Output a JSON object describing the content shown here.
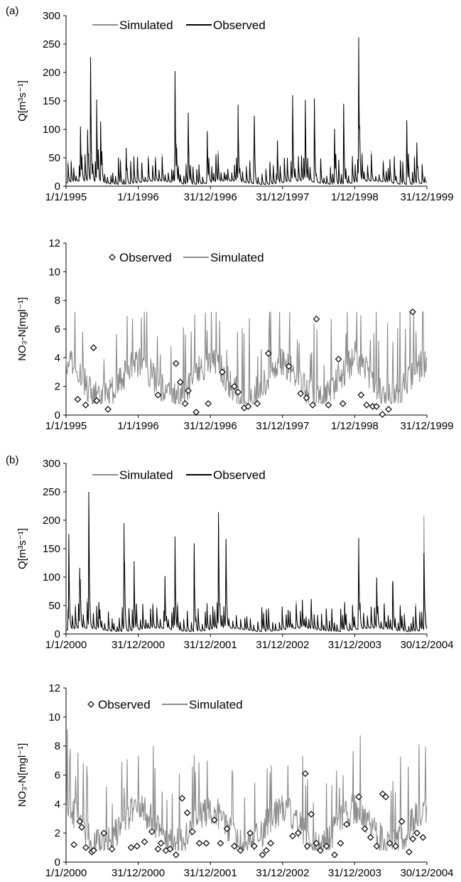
{
  "panel_labels": [
    "(a)",
    "(b)"
  ],
  "chart_data": [
    {
      "type": "line",
      "panel": "(a)",
      "ylabel": "Q[m³s⁻¹]",
      "ylim": [
        0,
        300
      ],
      "yticks": [
        "0",
        "50",
        "100",
        "150",
        "200",
        "250",
        "300"
      ],
      "xticks": [
        "1/1/1995",
        "1/1/1996",
        "31/12/1996",
        "31/12/1997",
        "1/12/1998",
        "31/12/1999"
      ],
      "legend": [
        "Simulated",
        "Observed"
      ],
      "legend_position": "top-left",
      "colors": {
        "Simulated": "#8c8c8c",
        "Observed": "#000000"
      },
      "x_range": [
        "1995-01-01",
        "1999-12-31"
      ],
      "peaks": [
        {
          "date": "1995-03-15",
          "observed": 92,
          "simulated": 75
        },
        {
          "date": "1995-04-20",
          "observed": 90,
          "simulated": 80
        },
        {
          "date": "1995-05-05",
          "observed": 217,
          "simulated": 200
        },
        {
          "date": "1995-06-05",
          "observed": 141,
          "simulated": 120
        },
        {
          "date": "1995-06-25",
          "observed": 106,
          "simulated": 100
        },
        {
          "date": "1995-11-01",
          "observed": 64,
          "simulated": 55
        },
        {
          "date": "1996-07-05",
          "observed": 195,
          "simulated": 180
        },
        {
          "date": "1996-09-10",
          "observed": 107,
          "simulated": 100
        },
        {
          "date": "1996-12-15",
          "observed": 85,
          "simulated": 80
        },
        {
          "date": "1997-05-20",
          "observed": 132,
          "simulated": 110
        },
        {
          "date": "1997-08-10",
          "observed": 95,
          "simulated": 90
        },
        {
          "date": "1997-12-05",
          "observed": 72,
          "simulated": 70
        },
        {
          "date": "1998-02-20",
          "observed": 149,
          "simulated": 130
        },
        {
          "date": "1998-04-25",
          "observed": 140,
          "simulated": 120
        },
        {
          "date": "1998-06-10",
          "observed": 118,
          "simulated": 100
        },
        {
          "date": "1998-09-20",
          "observed": 97,
          "simulated": 90
        },
        {
          "date": "1998-11-05",
          "observed": 141,
          "simulated": 130
        },
        {
          "date": "1999-01-20",
          "observed": 246,
          "simulated": 230
        },
        {
          "date": "1999-09-20",
          "observed": 98,
          "simulated": 90
        },
        {
          "date": "1999-11-10",
          "observed": 72,
          "simulated": 65
        }
      ]
    },
    {
      "type": "line",
      "panel": "(a)",
      "ylabel": "NO₃-N[mgl⁻¹]",
      "ylim": [
        0,
        12
      ],
      "yticks": [
        "0",
        "2",
        "4",
        "6",
        "8",
        "10",
        "12"
      ],
      "xticks": [
        "1/1/1995",
        "1/1/1996",
        "31/12/1996",
        "31/12/1997",
        "1/12/1998",
        "31/12/1999"
      ],
      "legend": [
        "Observed",
        "Simulated"
      ],
      "legend_position": "top-left",
      "colors": {
        "Simulated": "#8c8c8c",
        "Observed": "#000000"
      },
      "x_range": [
        "1995-01-01",
        "1999-12-31"
      ],
      "observed_points": [
        {
          "date": "1995-03-01",
          "value": 1.1
        },
        {
          "date": "1995-04-10",
          "value": 0.7
        },
        {
          "date": "1995-05-20",
          "value": 4.7
        },
        {
          "date": "1995-06-05",
          "value": 1.0
        },
        {
          "date": "1995-08-01",
          "value": 0.4
        },
        {
          "date": "1996-04-10",
          "value": 1.4
        },
        {
          "date": "1996-07-10",
          "value": 3.6
        },
        {
          "date": "1996-08-01",
          "value": 2.3
        },
        {
          "date": "1996-08-25",
          "value": 0.8
        },
        {
          "date": "1996-09-10",
          "value": 1.7
        },
        {
          "date": "1996-10-20",
          "value": 0.2
        },
        {
          "date": "1996-12-20",
          "value": 0.8
        },
        {
          "date": "1997-03-01",
          "value": 3.0
        },
        {
          "date": "1997-05-01",
          "value": 2.0
        },
        {
          "date": "1997-05-20",
          "value": 1.6
        },
        {
          "date": "1997-06-20",
          "value": 0.5
        },
        {
          "date": "1997-07-10",
          "value": 0.6
        },
        {
          "date": "1997-08-25",
          "value": 0.8
        },
        {
          "date": "1997-10-20",
          "value": 4.3
        },
        {
          "date": "1998-02-01",
          "value": 3.4
        },
        {
          "date": "1998-04-01",
          "value": 1.5
        },
        {
          "date": "1998-05-01",
          "value": 1.2
        },
        {
          "date": "1998-06-01",
          "value": 0.7
        },
        {
          "date": "1998-06-20",
          "value": 6.7
        },
        {
          "date": "1998-08-20",
          "value": 0.7
        },
        {
          "date": "1998-10-10",
          "value": 3.9
        },
        {
          "date": "1998-11-01",
          "value": 0.8
        },
        {
          "date": "1999-02-01",
          "value": 1.4
        },
        {
          "date": "1999-03-01",
          "value": 0.7
        },
        {
          "date": "1999-04-01",
          "value": 0.6
        },
        {
          "date": "1999-04-20",
          "value": 0.6
        },
        {
          "date": "1999-05-20",
          "value": 0.05
        },
        {
          "date": "1999-06-20",
          "value": 0.4
        },
        {
          "date": "1999-10-20",
          "value": 7.2
        }
      ]
    },
    {
      "type": "line",
      "panel": "(b)",
      "ylabel": "Q[m³s⁻¹]",
      "ylim": [
        0,
        300
      ],
      "yticks": [
        "0",
        "50",
        "100",
        "150",
        "200",
        "250",
        "300"
      ],
      "xticks": [
        "1/1/2000",
        "31/12/2000",
        "31/12/2001",
        "31/12/2002",
        "31/12/2003",
        "30/12/2004"
      ],
      "legend": [
        "Simulated",
        "Observed"
      ],
      "legend_position": "top-left",
      "colors": {
        "Simulated": "#8c8c8c",
        "Observed": "#000000"
      },
      "x_range": [
        "2000-01-01",
        "2004-12-30"
      ],
      "peaks": [
        {
          "date": "2000-01-15",
          "observed": 158,
          "simulated": 140
        },
        {
          "date": "2000-03-10",
          "observed": 100,
          "simulated": 90
        },
        {
          "date": "2000-04-25",
          "observed": 232,
          "simulated": 210
        },
        {
          "date": "2000-06-15",
          "observed": 47,
          "simulated": 45
        },
        {
          "date": "2000-10-20",
          "observed": 188,
          "simulated": 160
        },
        {
          "date": "2000-12-10",
          "observed": 120,
          "simulated": 110
        },
        {
          "date": "2001-05-15",
          "observed": 86,
          "simulated": 80
        },
        {
          "date": "2001-07-05",
          "observed": 160,
          "simulated": 140
        },
        {
          "date": "2001-10-10",
          "observed": 130,
          "simulated": 120
        },
        {
          "date": "2002-02-10",
          "observed": 200,
          "simulated": 180
        },
        {
          "date": "2002-03-20",
          "observed": 130,
          "simulated": 115
        },
        {
          "date": "2003-04-10",
          "observed": 49,
          "simulated": 45
        },
        {
          "date": "2003-05-25",
          "observed": 40,
          "simulated": 35
        },
        {
          "date": "2003-11-10",
          "observed": 50,
          "simulated": 45
        },
        {
          "date": "2004-01-20",
          "observed": 138,
          "simulated": 110
        },
        {
          "date": "2004-04-20",
          "observed": 88,
          "simulated": 80
        },
        {
          "date": "2004-07-10",
          "observed": 70,
          "simulated": 65
        },
        {
          "date": "2004-12-15",
          "observed": 135,
          "simulated": 200
        }
      ]
    },
    {
      "type": "line",
      "panel": "(b)",
      "ylabel": "NO₃-N[mgl⁻¹]",
      "ylim": [
        0,
        12
      ],
      "yticks": [
        "0",
        "2",
        "4",
        "6",
        "8",
        "10",
        "12"
      ],
      "xticks": [
        "1/1/2000",
        "31/12/2000",
        "31/12/2001",
        "31/12/2002",
        "31/12/2003",
        "30/12/2004"
      ],
      "legend": [
        "Observed",
        "Simulated"
      ],
      "legend_position": "top-left",
      "colors": {
        "Simulated": "#8c8c8c",
        "Observed": "#000000"
      },
      "x_range": [
        "2000-01-01",
        "2004-12-30"
      ],
      "observed_points": [
        {
          "date": "2000-02-10",
          "value": 1.2
        },
        {
          "date": "2000-03-10",
          "value": 2.8
        },
        {
          "date": "2000-03-20",
          "value": 2.4
        },
        {
          "date": "2000-04-10",
          "value": 1.0
        },
        {
          "date": "2000-05-10",
          "value": 0.7
        },
        {
          "date": "2000-05-20",
          "value": 0.8
        },
        {
          "date": "2000-07-10",
          "value": 2.0
        },
        {
          "date": "2000-08-20",
          "value": 0.9
        },
        {
          "date": "2000-11-25",
          "value": 1.0
        },
        {
          "date": "2000-12-25",
          "value": 1.1
        },
        {
          "date": "2001-02-01",
          "value": 1.4
        },
        {
          "date": "2001-03-10",
          "value": 2.1
        },
        {
          "date": "2001-04-10",
          "value": 0.9
        },
        {
          "date": "2001-04-25",
          "value": 1.3
        },
        {
          "date": "2001-05-20",
          "value": 0.8
        },
        {
          "date": "2001-06-10",
          "value": 0.9
        },
        {
          "date": "2001-07-10",
          "value": 0.5
        },
        {
          "date": "2001-08-10",
          "value": 4.4
        },
        {
          "date": "2001-09-05",
          "value": 3.4
        },
        {
          "date": "2001-10-01",
          "value": 2.1
        },
        {
          "date": "2001-11-05",
          "value": 1.3
        },
        {
          "date": "2001-12-10",
          "value": 1.3
        },
        {
          "date": "2002-01-20",
          "value": 2.9
        },
        {
          "date": "2002-02-20",
          "value": 1.3
        },
        {
          "date": "2002-03-25",
          "value": 2.3
        },
        {
          "date": "2002-05-01",
          "value": 1.1
        },
        {
          "date": "2002-06-01",
          "value": 0.8
        },
        {
          "date": "2002-07-20",
          "value": 2.0
        },
        {
          "date": "2002-08-10",
          "value": 1.1
        },
        {
          "date": "2002-09-20",
          "value": 0.5
        },
        {
          "date": "2002-10-10",
          "value": 0.8
        },
        {
          "date": "2002-11-01",
          "value": 1.3
        },
        {
          "date": "2003-02-20",
          "value": 1.8
        },
        {
          "date": "2003-03-20",
          "value": 2.0
        },
        {
          "date": "2003-04-25",
          "value": 6.1
        },
        {
          "date": "2003-05-05",
          "value": 1.1
        },
        {
          "date": "2003-05-25",
          "value": 3.3
        },
        {
          "date": "2003-06-20",
          "value": 1.3
        },
        {
          "date": "2003-07-10",
          "value": 0.8
        },
        {
          "date": "2003-08-10",
          "value": 1.1
        },
        {
          "date": "2003-09-20",
          "value": 0.5
        },
        {
          "date": "2003-10-20",
          "value": 1.3
        },
        {
          "date": "2003-11-20",
          "value": 2.6
        },
        {
          "date": "2004-01-20",
          "value": 4.5
        },
        {
          "date": "2004-02-20",
          "value": 2.3
        },
        {
          "date": "2004-03-20",
          "value": 1.7
        },
        {
          "date": "2004-04-20",
          "value": 1.1
        },
        {
          "date": "2004-05-20",
          "value": 4.7
        },
        {
          "date": "2004-06-05",
          "value": 4.5
        },
        {
          "date": "2004-06-25",
          "value": 1.3
        },
        {
          "date": "2004-07-25",
          "value": 1.1
        },
        {
          "date": "2004-08-25",
          "value": 2.8
        },
        {
          "date": "2004-10-01",
          "value": 0.7
        },
        {
          "date": "2004-10-20",
          "value": 1.6
        },
        {
          "date": "2004-11-10",
          "value": 2.0
        },
        {
          "date": "2004-12-10",
          "value": 1.7
        }
      ]
    }
  ]
}
